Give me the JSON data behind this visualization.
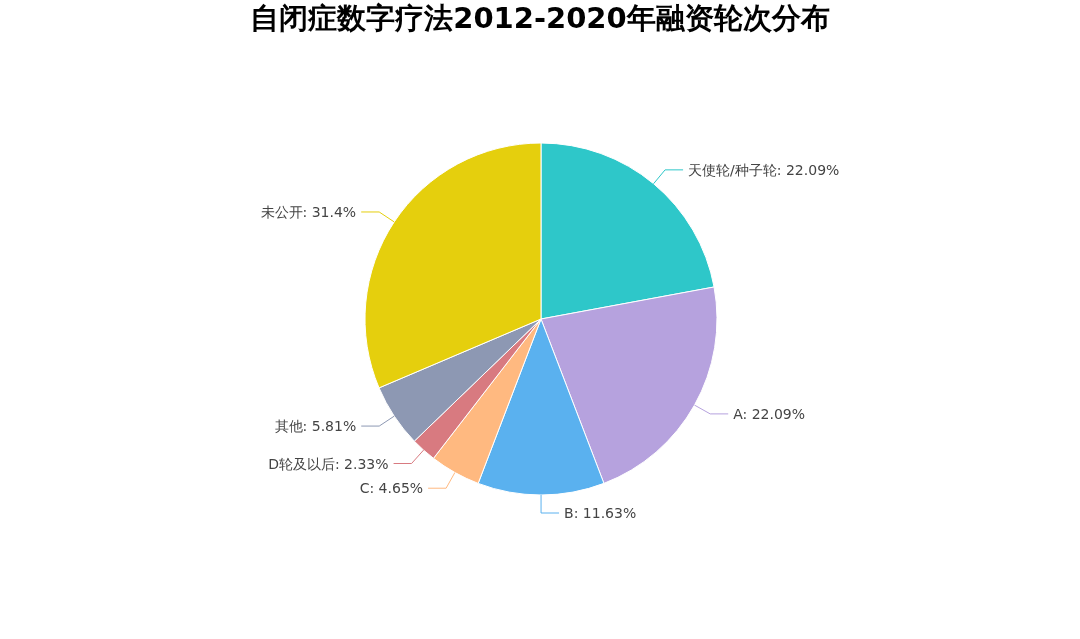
{
  "chart_data": {
    "type": "pie",
    "title": "自闭症数字疗法2012-2020年融资轮次分布",
    "categories": [
      "天使轮/种子轮",
      "A",
      "B",
      "C",
      "D轮及以后",
      "其他",
      "未公开"
    ],
    "values": [
      22.09,
      22.09,
      11.63,
      4.65,
      2.33,
      5.81,
      31.4
    ],
    "value_labels": [
      "22.09%",
      "22.09%",
      "11.63%",
      "4.65%",
      "2.33%",
      "5.81%",
      "31.4%"
    ],
    "colors": [
      "#2ec7c9",
      "#b6a2de",
      "#5ab1ef",
      "#ffb980",
      "#d87a80",
      "#8d98b3",
      "#e5cf0d"
    ]
  }
}
